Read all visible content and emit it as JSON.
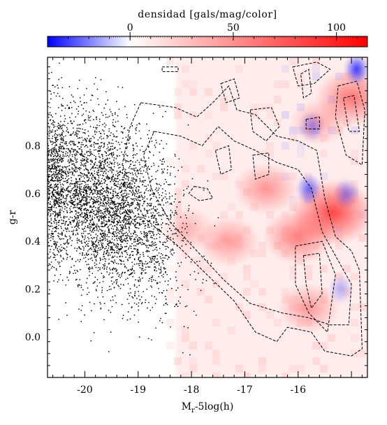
{
  "colorbar": {
    "title": "densidad [gals/mag/color]",
    "range": [
      -40,
      115
    ],
    "ticks": [
      {
        "value": 0,
        "label": "0"
      },
      {
        "value": 50,
        "label": "50"
      },
      {
        "value": 100,
        "label": "100"
      }
    ],
    "colors": {
      "negative": "#0000ff",
      "zero": "#ffffff",
      "positive": "#ff0000"
    }
  },
  "chart_data": {
    "type": "scatter",
    "title": "",
    "xlabel": "M_r-5log(h)",
    "xlabel_main": "M",
    "xlabel_sub": "r",
    "xlabel_rest": "-5log(h)",
    "ylabel": "g-r",
    "xlim": [
      -20.7,
      -14.7
    ],
    "ylim": [
      -0.17,
      1.17
    ],
    "xticks": [
      {
        "value": -20,
        "label": "-20"
      },
      {
        "value": -19,
        "label": "-19"
      },
      {
        "value": -18,
        "label": "-18"
      },
      {
        "value": -17,
        "label": "-17"
      },
      {
        "value": -16,
        "label": "-16"
      }
    ],
    "yticks": [
      {
        "value": 0.0,
        "label": "0.0"
      },
      {
        "value": 0.2,
        "label": "0.2"
      },
      {
        "value": 0.4,
        "label": "0.4"
      },
      {
        "value": 0.6,
        "label": "0.6"
      },
      {
        "value": 0.8,
        "label": "0.8"
      }
    ],
    "grid": false,
    "layers": [
      {
        "type": "heatmap",
        "description": "density residual map",
        "hotspots": [
          {
            "x": -16.0,
            "y": 0.42,
            "value": 75
          },
          {
            "x": -15.35,
            "y": 0.52,
            "value": 110
          },
          {
            "x": -16.6,
            "y": 0.62,
            "value": 60
          },
          {
            "x": -15.8,
            "y": 0.12,
            "value": 55
          },
          {
            "x": -17.3,
            "y": 0.4,
            "value": 55
          },
          {
            "x": -18.1,
            "y": 0.45,
            "value": 40
          },
          {
            "x": -15.0,
            "y": 1.0,
            "value": 80
          },
          {
            "x": -15.6,
            "y": 0.9,
            "value": 45
          }
        ],
        "coldspots": [
          {
            "x": -14.9,
            "y": 1.12,
            "value": -40
          },
          {
            "x": -15.8,
            "y": 0.62,
            "value": -30
          },
          {
            "x": -15.1,
            "y": 0.6,
            "value": -22
          },
          {
            "x": -15.75,
            "y": 0.88,
            "value": -20
          },
          {
            "x": -15.2,
            "y": 0.2,
            "value": -15
          }
        ]
      },
      {
        "type": "contour",
        "style": "dashed",
        "levels": [
          0,
          10
        ]
      },
      {
        "type": "scatter",
        "description": "galaxy sample",
        "center": {
          "x": -19.6,
          "y": 0.55
        },
        "count": 4200
      }
    ]
  }
}
